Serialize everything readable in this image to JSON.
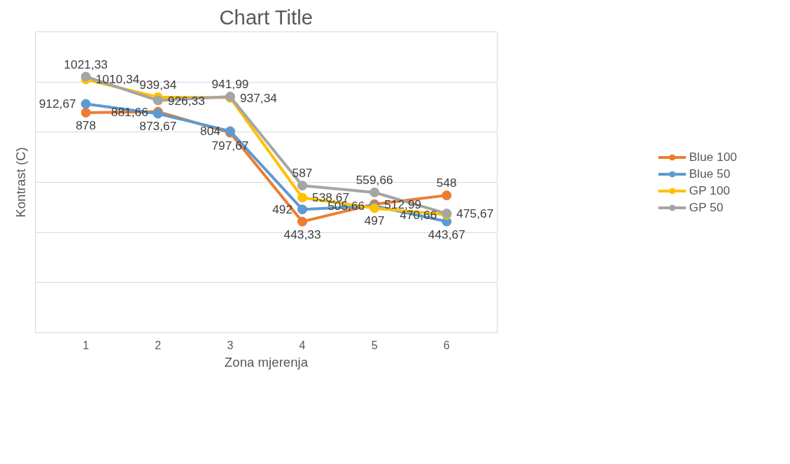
{
  "chart_data": {
    "type": "line",
    "title": "Chart Title",
    "xlabel": "Zona mjerenja",
    "ylabel": "Kontrast (C)",
    "categories": [
      "1",
      "2",
      "3",
      "4",
      "5",
      "6"
    ],
    "series": [
      {
        "name": "Blue 100",
        "color": "#ed7d31",
        "values": [
          878,
          881.66,
          797.67,
          443.33,
          512.99,
          548
        ],
        "value_labels": [
          "878",
          "881,66",
          "797,67",
          "443,33",
          "512,99",
          "548"
        ]
      },
      {
        "name": "Blue 50",
        "color": "#5b9bd5",
        "values": [
          912.67,
          873.67,
          804,
          492,
          505.66,
          443.67
        ],
        "value_labels": [
          "912,67",
          "873,67",
          "804",
          "492",
          "505,66",
          "443,67"
        ]
      },
      {
        "name": "GP 100",
        "color": "#ffc000",
        "values": [
          1010.34,
          939.34,
          937.34,
          538.67,
          497,
          470.66
        ],
        "value_labels": [
          "1010,34",
          "939,34",
          "937,34",
          "538,67",
          "497",
          "470,66"
        ]
      },
      {
        "name": "GP 50",
        "color": "#a5a5a5",
        "values": [
          1021.33,
          926.33,
          941.99,
          587,
          559.66,
          475.67
        ],
        "value_labels": [
          "1021,33",
          "926,33",
          "941,99",
          "587",
          "559,66",
          "475,67"
        ]
      }
    ],
    "ylim": [
      0,
      1200
    ],
    "yticks": [
      {
        "value": 0,
        "label": null
      },
      {
        "value": 200,
        "label": null
      },
      {
        "value": 400,
        "label": null
      },
      {
        "value": 600,
        "label": null
      },
      {
        "value": 800,
        "label": null
      },
      {
        "value": 1000,
        "label": null
      }
    ],
    "tick_labels": "x",
    "grid": "y",
    "legend": "right",
    "marker": "circle",
    "line_style": "solid"
  }
}
